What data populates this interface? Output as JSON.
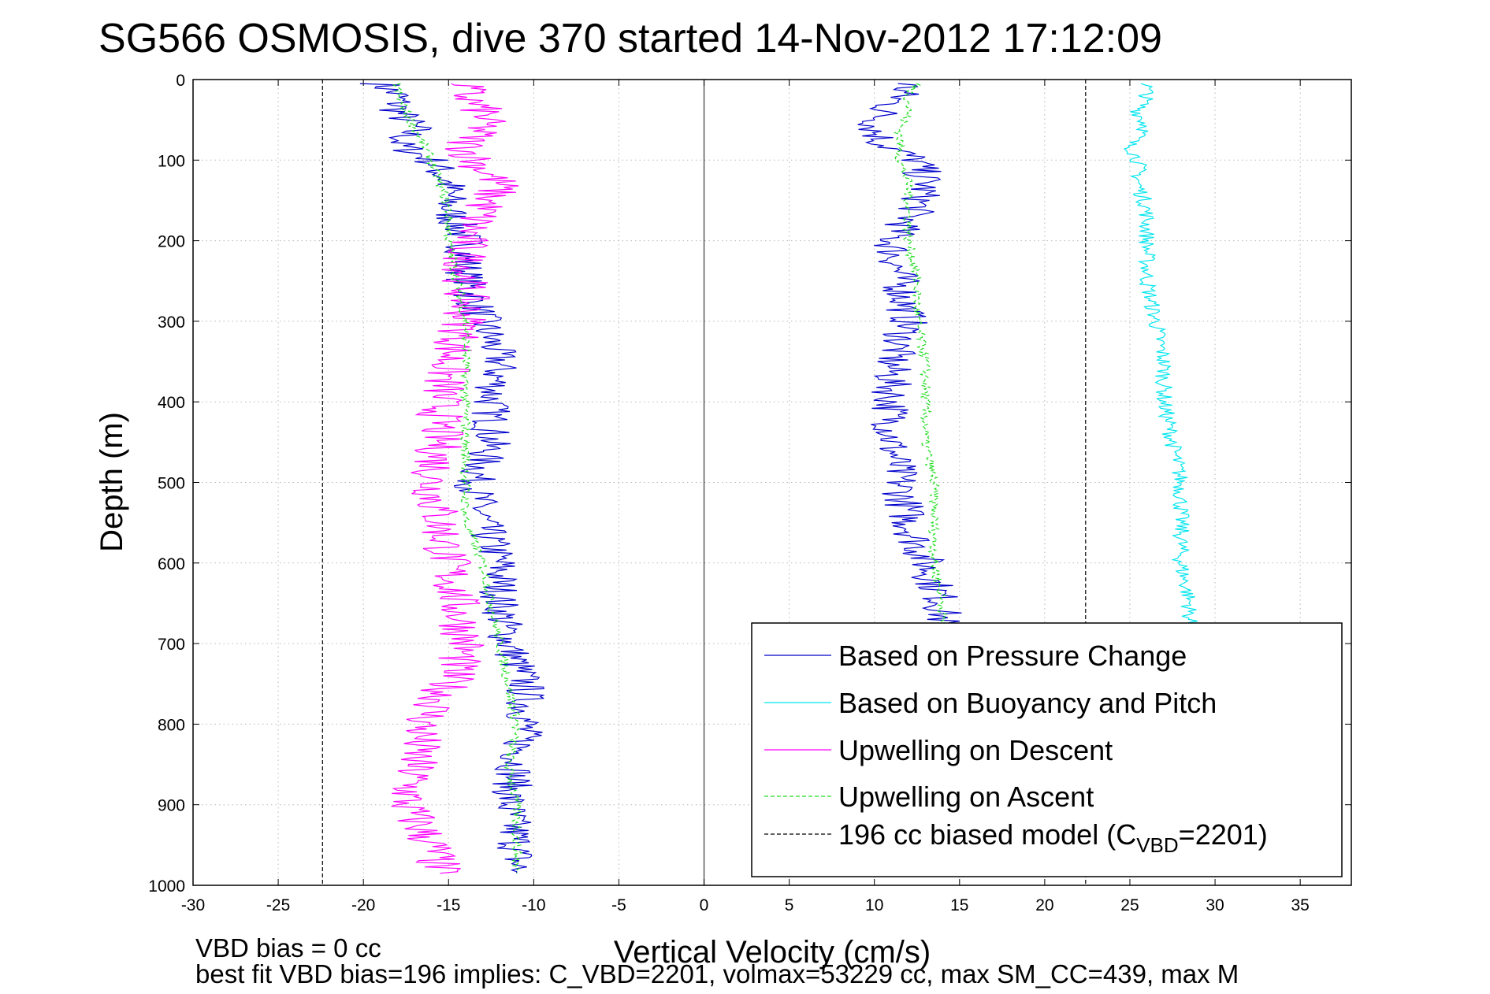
{
  "chart_data": {
    "type": "line",
    "title": "SG566 OSMOSIS, dive 370 started 14-Nov-2012 17:12:09",
    "xlabel": "Vertical Velocity (cm/s)",
    "ylabel": "Depth (m)",
    "xlim": [
      -30,
      38
    ],
    "ylim": [
      1000,
      0
    ],
    "y_reversed": true,
    "grid": true,
    "xticks": [
      -30,
      -25,
      -20,
      -15,
      -10,
      -5,
      0,
      5,
      10,
      15,
      20,
      25,
      30,
      35
    ],
    "yticks": [
      0,
      100,
      200,
      300,
      400,
      500,
      600,
      700,
      800,
      900,
      1000
    ],
    "legend_position": "bottom-right",
    "series": [
      {
        "name": "Based on Pressure Change",
        "color": "#0000cc",
        "style": "solid",
        "segments": [
          {
            "depth": [
              5,
              20,
              40,
              60,
              80,
              100,
              130,
              160,
              200,
              250,
              300,
              350,
              400,
              450,
              500,
              550,
              600,
              650,
              700,
              750,
              800,
              850,
              900,
              950,
              985
            ],
            "velocity": [
              -19,
              -18,
              -18,
              -17,
              -18,
              -16,
              -15,
              -15,
              -14,
              -14,
              -13,
              -12,
              -12.5,
              -12.5,
              -13.5,
              -13,
              -12,
              -12,
              -11.5,
              -10.5,
              -10.5,
              -11,
              -11.5,
              -11,
              -11
            ]
          },
          {
            "depth": [
              5,
              20,
              40,
              60,
              80,
              100,
              130,
              160,
              200,
              250,
              300,
              350,
              400,
              450,
              500,
              550,
              600,
              650,
              690
            ],
            "velocity": [
              12,
              11.5,
              10.5,
              10,
              10.5,
              12.5,
              13,
              12.5,
              11,
              11.5,
              12,
              11,
              11,
              11,
              11.5,
              12,
              13,
              14,
              14
            ]
          }
        ]
      },
      {
        "name": "Based on Buoyancy and Pitch",
        "color": "#00e5ee",
        "style": "solid",
        "segments": [
          {
            "depth": [
              5,
              20,
              40,
              60,
              80,
              100,
              130,
              160,
              200,
              250,
              300,
              350,
              400,
              450,
              500,
              550,
              600,
              650,
              690
            ],
            "velocity": [
              26,
              26,
              25.5,
              26,
              25,
              25.5,
              25.5,
              26,
              26,
              26,
              26.5,
              27,
              27,
              27.5,
              28,
              28,
              28,
              28.5,
              28.5
            ]
          }
        ]
      },
      {
        "name": "Upwelling on Descent",
        "color": "#ff00ff",
        "style": "solid",
        "segments": [
          {
            "depth": [
              5,
              20,
              40,
              60,
              80,
              100,
              130,
              160,
              200,
              250,
              300,
              350,
              400,
              450,
              500,
              550,
              600,
              650,
              700,
              750,
              800,
              850,
              900,
              950,
              985
            ],
            "velocity": [
              -14,
              -14,
              -13,
              -13,
              -14,
              -13.5,
              -12,
              -13,
              -14,
              -14,
              -14,
              -15,
              -15.5,
              -15.5,
              -16,
              -15.5,
              -15,
              -14.5,
              -14,
              -15,
              -16.5,
              -17,
              -17.5,
              -16,
              -15.5
            ]
          }
        ]
      },
      {
        "name": "Upwelling on Ascent",
        "color": "#22dd22",
        "style": "dashed",
        "segments": [
          {
            "depth": [
              5,
              20,
              40,
              60,
              80,
              100,
              130,
              160,
              200,
              250,
              300,
              350,
              400,
              450,
              500,
              550,
              600,
              650,
              700,
              750,
              800,
              850,
              900,
              950,
              985
            ],
            "velocity": [
              -18,
              -18,
              -17.5,
              -17,
              -16.5,
              -16,
              -15.5,
              -15,
              -15,
              -14.5,
              -14,
              -14,
              -14,
              -14,
              -14,
              -14,
              -13,
              -12.5,
              -12,
              -11.5,
              -11,
              -11.5,
              -11,
              -11,
              -11
            ]
          },
          {
            "depth": [
              5,
              20,
              40,
              60,
              80,
              100,
              130,
              160,
              200,
              250,
              300,
              350,
              400,
              450,
              500,
              550,
              600,
              650,
              690
            ],
            "velocity": [
              12.5,
              12,
              12,
              11.5,
              11.5,
              11.5,
              12,
              12,
              12,
              12.5,
              12.5,
              13,
              13,
              13,
              13.5,
              13.5,
              13.5,
              14,
              14
            ]
          }
        ]
      },
      {
        "name": "196 cc biased model",
        "legend_suffix": "=2201)",
        "legend_prefix": "(C",
        "legend_subscript": "VBD",
        "color": "#000000",
        "style": "dashed",
        "segments": [
          {
            "depth": [
              0,
              1000
            ],
            "velocity": [
              -22.4,
              -22.4
            ]
          },
          {
            "depth": [
              0,
              1000
            ],
            "velocity": [
              22.4,
              22.4
            ]
          }
        ]
      }
    ],
    "vertical_reference_line": 0,
    "footnote_line1": "VBD bias = 0 cc",
    "footnote_line2": "best fit VBD bias=196 implies: C_VBD=2201, volmax=53229 cc, max SM_CC=439, max M"
  }
}
